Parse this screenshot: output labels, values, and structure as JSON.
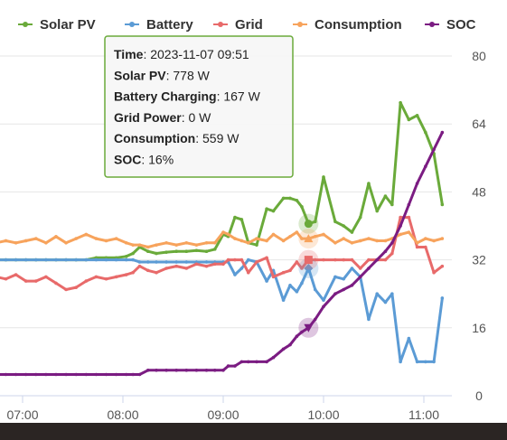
{
  "chart_data": {
    "type": "line",
    "title": "",
    "xlabel": "",
    "ylabel": "",
    "x_ticks": [
      "07:00",
      "08:00",
      "09:00",
      "10:00",
      "11:00"
    ],
    "x_range": [
      "06:44",
      "11:20"
    ],
    "y_ticks": [
      "0",
      "16",
      "32",
      "48",
      "64",
      "80"
    ],
    "ylim": [
      0,
      80
    ],
    "y_axis_position": "right",
    "y_grid": true,
    "legend_position": "top",
    "series": [
      {
        "name": "Solar PV",
        "color": "#6aaa3a",
        "points": [
          [
            "06:44",
            32
          ],
          [
            "06:50",
            32
          ],
          [
            "06:56",
            32
          ],
          [
            "07:02",
            32
          ],
          [
            "07:08",
            32
          ],
          [
            "07:14",
            32
          ],
          [
            "07:20",
            32
          ],
          [
            "07:26",
            32
          ],
          [
            "07:32",
            32
          ],
          [
            "07:38",
            32
          ],
          [
            "07:44",
            32.5
          ],
          [
            "07:50",
            32.5
          ],
          [
            "07:56",
            32.5
          ],
          [
            "08:02",
            32.8
          ],
          [
            "08:06",
            33.5
          ],
          [
            "08:10",
            35
          ],
          [
            "08:15",
            34
          ],
          [
            "08:20",
            33.5
          ],
          [
            "08:26",
            33.8
          ],
          [
            "08:32",
            34
          ],
          [
            "08:38",
            34
          ],
          [
            "08:44",
            34.2
          ],
          [
            "08:50",
            34
          ],
          [
            "08:55",
            34.5
          ],
          [
            "09:00",
            38
          ],
          [
            "09:03",
            37.5
          ],
          [
            "09:07",
            42
          ],
          [
            "09:11",
            41.5
          ],
          [
            "09:15",
            36
          ],
          [
            "09:20",
            35.5
          ],
          [
            "09:26",
            44
          ],
          [
            "09:30",
            43.5
          ],
          [
            "09:36",
            46.5
          ],
          [
            "09:40",
            46.5
          ],
          [
            "09:44",
            46
          ],
          [
            "09:47",
            44.5
          ],
          [
            "09:51",
            40.5
          ],
          [
            "09:55",
            41
          ],
          [
            "10:00",
            51.5
          ],
          [
            "10:07",
            41
          ],
          [
            "10:12",
            40
          ],
          [
            "10:17",
            38.5
          ],
          [
            "10:22",
            42
          ],
          [
            "10:27",
            50
          ],
          [
            "10:32",
            43.5
          ],
          [
            "10:37",
            47
          ],
          [
            "10:41",
            45
          ],
          [
            "10:46",
            69
          ],
          [
            "10:51",
            65
          ],
          [
            "10:56",
            66
          ],
          [
            "11:01",
            62
          ],
          [
            "11:06",
            57
          ],
          [
            "11:11",
            45
          ]
        ]
      },
      {
        "name": "Battery",
        "color": "#5b9bd5",
        "points": [
          [
            "06:44",
            32
          ],
          [
            "06:50",
            32
          ],
          [
            "06:56",
            32
          ],
          [
            "07:02",
            32
          ],
          [
            "07:08",
            32
          ],
          [
            "07:14",
            32
          ],
          [
            "07:20",
            32
          ],
          [
            "07:26",
            32
          ],
          [
            "07:32",
            32
          ],
          [
            "07:38",
            32
          ],
          [
            "07:44",
            32
          ],
          [
            "07:50",
            32
          ],
          [
            "07:56",
            32
          ],
          [
            "08:02",
            32
          ],
          [
            "08:06",
            32
          ],
          [
            "08:10",
            31.5
          ],
          [
            "08:15",
            31.5
          ],
          [
            "08:20",
            31.5
          ],
          [
            "08:26",
            31.5
          ],
          [
            "08:32",
            31.5
          ],
          [
            "08:38",
            31.5
          ],
          [
            "08:44",
            31.5
          ],
          [
            "08:50",
            31.5
          ],
          [
            "08:55",
            31.5
          ],
          [
            "09:00",
            31.5
          ],
          [
            "09:03",
            31.5
          ],
          [
            "09:07",
            28.5
          ],
          [
            "09:11",
            30
          ],
          [
            "09:15",
            32
          ],
          [
            "09:20",
            31.5
          ],
          [
            "09:26",
            27
          ],
          [
            "09:30",
            29.5
          ],
          [
            "09:36",
            22.5
          ],
          [
            "09:40",
            26
          ],
          [
            "09:44",
            24.5
          ],
          [
            "09:47",
            26.5
          ],
          [
            "09:51",
            30
          ],
          [
            "09:55",
            25
          ],
          [
            "10:00",
            22.5
          ],
          [
            "10:07",
            28
          ],
          [
            "10:12",
            27.5
          ],
          [
            "10:17",
            30
          ],
          [
            "10:22",
            28
          ],
          [
            "10:27",
            18
          ],
          [
            "10:32",
            24
          ],
          [
            "10:37",
            22
          ],
          [
            "10:41",
            24
          ],
          [
            "10:46",
            8
          ],
          [
            "10:51",
            13.5
          ],
          [
            "10:56",
            8
          ],
          [
            "11:01",
            8
          ],
          [
            "11:06",
            8
          ],
          [
            "11:11",
            23
          ]
        ]
      },
      {
        "name": "Grid",
        "color": "#e86a6a",
        "points": [
          [
            "06:44",
            28
          ],
          [
            "06:50",
            27.5
          ],
          [
            "06:56",
            28.5
          ],
          [
            "07:02",
            27
          ],
          [
            "07:08",
            27
          ],
          [
            "07:14",
            28
          ],
          [
            "07:20",
            26.5
          ],
          [
            "07:26",
            25
          ],
          [
            "07:32",
            25.5
          ],
          [
            "07:38",
            27
          ],
          [
            "07:44",
            28
          ],
          [
            "07:50",
            27.5
          ],
          [
            "07:56",
            28
          ],
          [
            "08:02",
            28.5
          ],
          [
            "08:06",
            29
          ],
          [
            "08:10",
            30.5
          ],
          [
            "08:15",
            29.5
          ],
          [
            "08:20",
            29
          ],
          [
            "08:26",
            30
          ],
          [
            "08:32",
            30.5
          ],
          [
            "08:38",
            30
          ],
          [
            "08:44",
            31
          ],
          [
            "08:50",
            30.5
          ],
          [
            "08:55",
            31
          ],
          [
            "09:00",
            31
          ],
          [
            "09:03",
            32
          ],
          [
            "09:07",
            32
          ],
          [
            "09:11",
            32
          ],
          [
            "09:15",
            29
          ],
          [
            "09:20",
            31.5
          ],
          [
            "09:26",
            32.5
          ],
          [
            "09:30",
            28
          ],
          [
            "09:36",
            29
          ],
          [
            "09:40",
            29.5
          ],
          [
            "09:44",
            31.5
          ],
          [
            "09:47",
            30
          ],
          [
            "09:51",
            32
          ],
          [
            "09:55",
            32
          ],
          [
            "10:00",
            32
          ],
          [
            "10:07",
            32
          ],
          [
            "10:12",
            32
          ],
          [
            "10:17",
            32
          ],
          [
            "10:22",
            30
          ],
          [
            "10:27",
            32
          ],
          [
            "10:32",
            32
          ],
          [
            "10:37",
            32
          ],
          [
            "10:41",
            33.5
          ],
          [
            "10:46",
            42
          ],
          [
            "10:51",
            42
          ],
          [
            "10:56",
            35
          ],
          [
            "11:01",
            35
          ],
          [
            "11:06",
            29
          ],
          [
            "11:11",
            30.5
          ]
        ]
      },
      {
        "name": "Consumption",
        "color": "#f7a35c",
        "points": [
          [
            "06:44",
            36
          ],
          [
            "06:50",
            36.5
          ],
          [
            "06:56",
            36
          ],
          [
            "07:02",
            36.5
          ],
          [
            "07:08",
            37
          ],
          [
            "07:14",
            36
          ],
          [
            "07:20",
            37.5
          ],
          [
            "07:26",
            36
          ],
          [
            "07:32",
            37
          ],
          [
            "07:38",
            38
          ],
          [
            "07:44",
            37
          ],
          [
            "07:50",
            36.5
          ],
          [
            "07:56",
            37
          ],
          [
            "08:02",
            36
          ],
          [
            "08:06",
            35.5
          ],
          [
            "08:10",
            35.5
          ],
          [
            "08:15",
            35
          ],
          [
            "08:20",
            35.5
          ],
          [
            "08:26",
            36
          ],
          [
            "08:32",
            35.5
          ],
          [
            "08:38",
            36
          ],
          [
            "08:44",
            35.5
          ],
          [
            "08:50",
            36
          ],
          [
            "08:55",
            36
          ],
          [
            "09:00",
            38.5
          ],
          [
            "09:03",
            38
          ],
          [
            "09:07",
            37
          ],
          [
            "09:11",
            36.5
          ],
          [
            "09:15",
            36
          ],
          [
            "09:20",
            37
          ],
          [
            "09:26",
            36.5
          ],
          [
            "09:30",
            38
          ],
          [
            "09:36",
            36.5
          ],
          [
            "09:40",
            37.5
          ],
          [
            "09:44",
            38.5
          ],
          [
            "09:47",
            37
          ],
          [
            "09:51",
            37
          ],
          [
            "09:55",
            37.5
          ],
          [
            "10:00",
            38
          ],
          [
            "10:07",
            36
          ],
          [
            "10:12",
            37
          ],
          [
            "10:17",
            36
          ],
          [
            "10:22",
            36.5
          ],
          [
            "10:27",
            37
          ],
          [
            "10:32",
            36.5
          ],
          [
            "10:37",
            36.5
          ],
          [
            "10:41",
            37
          ],
          [
            "10:46",
            38
          ],
          [
            "10:51",
            38.5
          ],
          [
            "10:56",
            36
          ],
          [
            "11:01",
            37
          ],
          [
            "11:06",
            36.5
          ],
          [
            "11:11",
            37
          ]
        ]
      },
      {
        "name": "SOC",
        "color": "#7b1c82",
        "points": [
          [
            "06:44",
            5
          ],
          [
            "06:50",
            5
          ],
          [
            "06:56",
            5
          ],
          [
            "07:02",
            5
          ],
          [
            "07:08",
            5
          ],
          [
            "07:14",
            5
          ],
          [
            "07:20",
            5
          ],
          [
            "07:26",
            5
          ],
          [
            "07:32",
            5
          ],
          [
            "07:38",
            5
          ],
          [
            "07:44",
            5
          ],
          [
            "07:50",
            5
          ],
          [
            "07:56",
            5
          ],
          [
            "08:02",
            5
          ],
          [
            "08:06",
            5
          ],
          [
            "08:10",
            5
          ],
          [
            "08:15",
            6
          ],
          [
            "08:20",
            6
          ],
          [
            "08:26",
            6
          ],
          [
            "08:32",
            6
          ],
          [
            "08:38",
            6
          ],
          [
            "08:44",
            6
          ],
          [
            "08:50",
            6
          ],
          [
            "08:55",
            6
          ],
          [
            "09:00",
            6
          ],
          [
            "09:03",
            7
          ],
          [
            "09:07",
            7
          ],
          [
            "09:11",
            8
          ],
          [
            "09:15",
            8
          ],
          [
            "09:20",
            8
          ],
          [
            "09:26",
            8
          ],
          [
            "09:30",
            9
          ],
          [
            "09:36",
            11
          ],
          [
            "09:40",
            12
          ],
          [
            "09:44",
            14
          ],
          [
            "09:47",
            15
          ],
          [
            "09:51",
            16
          ],
          [
            "09:55",
            18
          ],
          [
            "10:00",
            21
          ],
          [
            "10:07",
            24
          ],
          [
            "10:12",
            25
          ],
          [
            "10:17",
            26
          ],
          [
            "10:22",
            28
          ],
          [
            "10:27",
            30
          ],
          [
            "10:32",
            32
          ],
          [
            "10:37",
            34
          ],
          [
            "10:41",
            36
          ],
          [
            "10:46",
            40
          ],
          [
            "10:51",
            45
          ],
          [
            "10:56",
            50
          ],
          [
            "11:01",
            54
          ],
          [
            "11:06",
            58
          ],
          [
            "11:11",
            62
          ]
        ]
      }
    ],
    "tooltip": {
      "x": "09:51",
      "rows": [
        {
          "key": "Time",
          "value": "2023-11-07 09:51"
        },
        {
          "key": "Solar PV",
          "value": "778 W"
        },
        {
          "key": "Battery Charging",
          "value": "167 W"
        },
        {
          "key": "Grid Power",
          "value": "0 W"
        },
        {
          "key": "Consumption",
          "value": "559 W"
        },
        {
          "key": "SOC",
          "value": "16%"
        }
      ],
      "border_color": "#6aaa3a"
    }
  }
}
